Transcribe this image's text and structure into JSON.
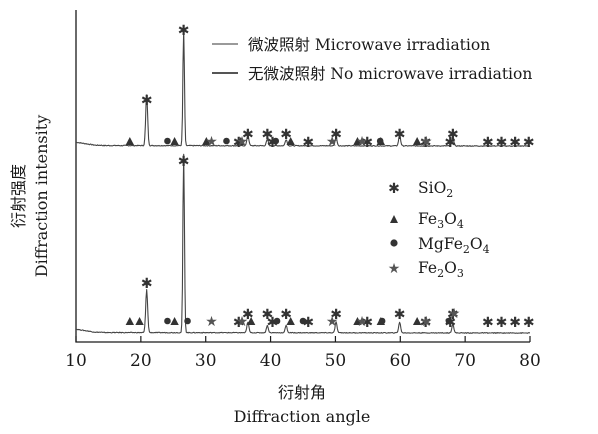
{
  "chart_data": {
    "type": "line",
    "xlabel_cn": "衍射角",
    "xlabel_en": "Diffraction angle",
    "ylabel_cn": "衍射强度",
    "ylabel_en": "Diffraction intensity",
    "xlim": [
      10,
      80
    ],
    "xticks": [
      10,
      20,
      30,
      40,
      50,
      60,
      70,
      80
    ],
    "y_ticks_shown": false,
    "series": [
      {
        "name": "微波照射 Microwave irradiation",
        "color": "#9a9a9a",
        "baseline": 0.0,
        "peaks": [
          [
            20.9,
            0.24
          ],
          [
            26.6,
            0.55
          ],
          [
            36.5,
            0.05
          ],
          [
            39.5,
            0.03
          ],
          [
            42.4,
            0.03
          ],
          [
            50.1,
            0.04
          ],
          [
            59.9,
            0.05
          ],
          [
            68.1,
            0.04
          ]
        ],
        "markers": {
          "SiO2": [
            20.9,
            26.6,
            35.1,
            36.5,
            39.5,
            40.3,
            42.4,
            45.8,
            50.1,
            54.9,
            59.9,
            63.9,
            67.7,
            68.1,
            73.5,
            75.6,
            77.7,
            79.8
          ],
          "Fe3O4": [
            18.3,
            25.2,
            30.1,
            35.4,
            43.1,
            53.4,
            57.0,
            62.6
          ],
          "MgFe2O4": [
            24.1,
            33.2,
            40.8,
            56.9
          ],
          "Fe2O3": [
            30.9,
            35.6,
            49.5,
            54.1,
            64.0
          ]
        }
      },
      {
        "name": "无微波照射 No microwave irradiation",
        "color": "#555555",
        "baseline": 0.0,
        "peaks": [
          [
            20.9,
            0.24
          ],
          [
            26.6,
            1.0
          ],
          [
            36.5,
            0.06
          ],
          [
            39.5,
            0.04
          ],
          [
            42.4,
            0.04
          ],
          [
            50.1,
            0.06
          ],
          [
            59.9,
            0.06
          ],
          [
            68.1,
            0.05
          ]
        ],
        "markers": {
          "SiO2": [
            20.9,
            26.6,
            35.1,
            36.5,
            39.5,
            40.3,
            42.4,
            45.8,
            50.1,
            54.9,
            59.9,
            63.9,
            67.7,
            68.1,
            73.5,
            75.6,
            77.7,
            79.8
          ],
          "Fe3O4": [
            18.3,
            19.8,
            25.2,
            37.0,
            43.1,
            53.4,
            57.0,
            62.6
          ],
          "MgFe2O4": [
            24.1,
            27.2,
            41.0,
            45.0,
            57.2,
            67.5
          ],
          "Fe2O3": [
            30.9,
            35.6,
            49.5,
            54.1,
            64.0,
            68.3
          ]
        }
      }
    ],
    "legend_series": [
      {
        "label": "微波照射 Microwave irradiation",
        "color": "#9a9a9a"
      },
      {
        "label": "无微波照射 No microwave irradiation",
        "color": "#555555"
      }
    ],
    "legend_phases": [
      {
        "symbol": "asterisk",
        "label": "SiO",
        "sub": "2",
        "tail": ""
      },
      {
        "symbol": "triangle",
        "label": "Fe",
        "sub": "3",
        "mid": "O",
        "sub2": "4"
      },
      {
        "symbol": "circle",
        "label": "MgFe",
        "sub": "2",
        "mid": "O",
        "sub2": "4"
      },
      {
        "symbol": "star",
        "label": "Fe",
        "sub": "2",
        "mid": "O",
        "sub2": "3"
      }
    ]
  }
}
